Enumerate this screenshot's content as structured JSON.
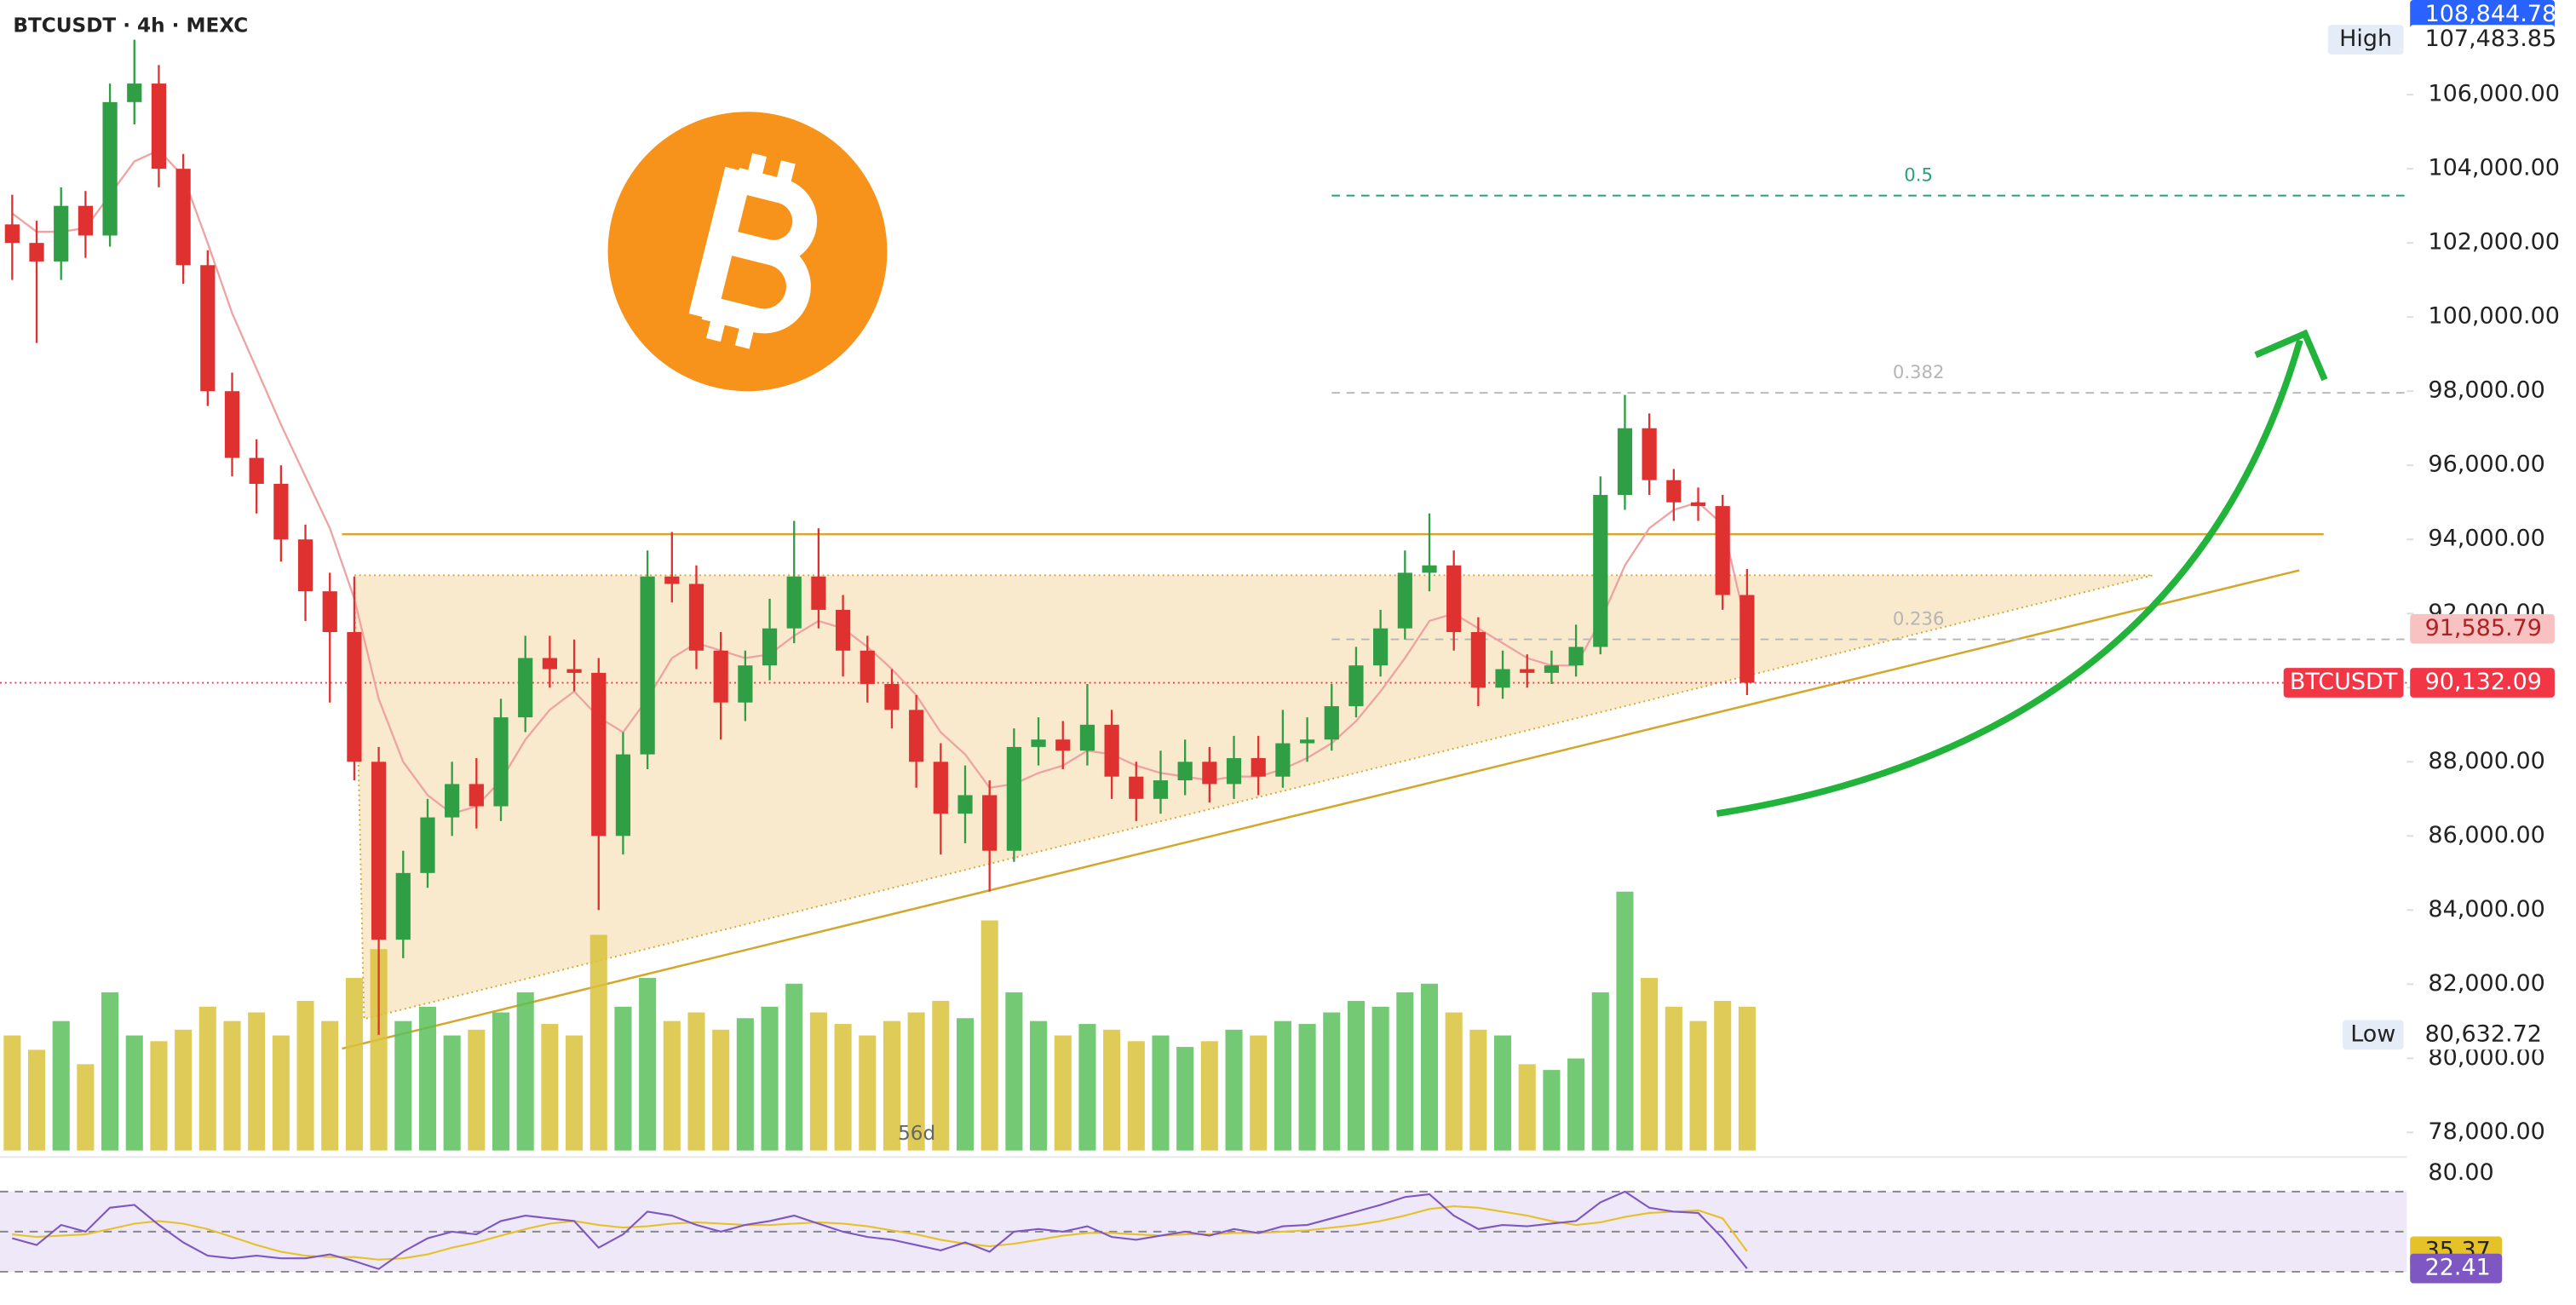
{
  "chart_data": {
    "type": "candlestick",
    "title": "BTCUSDT · 4h · MEXC",
    "annotation": "56d",
    "xlim": [
      -0.5,
      98
    ],
    "ylim": [
      77512.2,
      108554.3
    ],
    "yticks": [
      {
        "value": 78000,
        "label": "78,000.00"
      },
      {
        "value": 80000,
        "label": "80,000.00"
      },
      {
        "value": 82000,
        "label": "82,000.00"
      },
      {
        "value": 84000,
        "label": "84,000.00"
      },
      {
        "value": 86000,
        "label": "86,000.00"
      },
      {
        "value": 88000,
        "label": "88,000.00"
      },
      {
        "value": 90000,
        "label": "90,000.00"
      },
      {
        "value": 92000,
        "label": "92,000.00"
      },
      {
        "value": 94000,
        "label": "94,000.00"
      },
      {
        "value": 96000,
        "label": "96,000.00"
      },
      {
        "value": 98000,
        "label": "98,000.00"
      },
      {
        "value": 100000,
        "label": "100,000.00"
      },
      {
        "value": 102000,
        "label": "102,000.00"
      },
      {
        "value": 104000,
        "label": "104,000.00"
      },
      {
        "value": 106000,
        "label": "106,000.00"
      }
    ],
    "up_color": "#2f9e44",
    "down_color": "#e03131",
    "open": [
      102500,
      102000,
      101500,
      103000,
      102200,
      105800,
      106300,
      104000,
      101400,
      98000,
      96200,
      95500,
      94000,
      92600,
      91500,
      88000,
      83200,
      85000,
      86500,
      87400,
      86800,
      89200,
      90800,
      90500,
      90400,
      86000,
      88200,
      93000,
      92800,
      91000,
      89600,
      90600,
      91600,
      93000,
      92100,
      91000,
      90100,
      89400,
      88000,
      86600,
      87100,
      85600,
      88400,
      88600,
      88300,
      89000,
      87600,
      87000,
      87500,
      88000,
      87400,
      88100,
      87600,
      88500,
      88600,
      89500,
      90600,
      91600,
      93100,
      93300,
      91500,
      90000,
      90500,
      90400,
      90600,
      91100,
      95200,
      97000,
      95600,
      95000,
      94900,
      92500
    ],
    "high": [
      103300,
      102600,
      103500,
      103400,
      106300,
      107483.85,
      106800,
      104400,
      101800,
      98500,
      96700,
      96000,
      94400,
      93100,
      93000,
      88400,
      85600,
      87000,
      88000,
      88100,
      89700,
      91400,
      91400,
      91300,
      90800,
      88800,
      93700,
      94200,
      93300,
      91500,
      91000,
      92400,
      94500,
      94300,
      92500,
      91400,
      90500,
      89800,
      88500,
      87900,
      87500,
      88900,
      89200,
      89100,
      90100,
      89400,
      88000,
      88300,
      88600,
      88400,
      88700,
      88700,
      89400,
      89200,
      90100,
      91100,
      92100,
      93700,
      94700,
      93700,
      91900,
      91000,
      90900,
      91000,
      91700,
      95700,
      97900,
      97400,
      95900,
      95400,
      95200,
      93200
    ],
    "low": [
      101000,
      99300,
      101000,
      101600,
      101900,
      105200,
      103500,
      100900,
      97600,
      95700,
      94700,
      93400,
      91800,
      89600,
      87500,
      80632.72,
      82700,
      84600,
      86000,
      86200,
      86400,
      88800,
      90000,
      89900,
      84000,
      85500,
      87800,
      92300,
      90500,
      88600,
      89100,
      90200,
      91200,
      91600,
      90300,
      89600,
      88900,
      87300,
      85500,
      85800,
      84500,
      85300,
      87900,
      87800,
      87900,
      87000,
      86400,
      86600,
      87100,
      86900,
      87000,
      87100,
      87300,
      88000,
      88300,
      89200,
      90300,
      91300,
      92600,
      91000,
      89500,
      89700,
      90000,
      90100,
      90300,
      90900,
      94800,
      95200,
      94500,
      94500,
      92100,
      89800
    ],
    "close": [
      102000,
      101500,
      103000,
      102200,
      105800,
      106300,
      104000,
      101400,
      98000,
      96200,
      95500,
      94000,
      92600,
      91500,
      88000,
      83200,
      85000,
      86500,
      87400,
      86800,
      89200,
      90800,
      90500,
      90400,
      86000,
      88200,
      93000,
      92800,
      91000,
      89600,
      90600,
      91600,
      93000,
      92100,
      91000,
      90100,
      89400,
      88000,
      86600,
      87100,
      85600,
      88400,
      88600,
      88300,
      89000,
      87600,
      87000,
      87500,
      88000,
      87400,
      88100,
      87600,
      88500,
      88600,
      89500,
      90600,
      91600,
      93100,
      93300,
      91500,
      90000,
      90500,
      90400,
      90600,
      91100,
      95200,
      97000,
      95600,
      95000,
      94900,
      92500,
      90132.09
    ],
    "ma": {
      "color": "#eea3a3",
      "values": [
        102800,
        102300,
        102300,
        102400,
        103300,
        104200,
        104500,
        103800,
        102000,
        100100,
        98600,
        97100,
        95700,
        94300,
        92400,
        89700,
        88000,
        87100,
        86600,
        86800,
        87500,
        88600,
        89400,
        89900,
        89200,
        88800,
        89700,
        90800,
        91200,
        91000,
        90800,
        90900,
        91400,
        91800,
        91600,
        91100,
        90500,
        89800,
        88800,
        88200,
        87300,
        87400,
        87700,
        87900,
        88300,
        88200,
        87900,
        87700,
        87600,
        87500,
        87600,
        87600,
        87800,
        88100,
        88500,
        89100,
        89900,
        90800,
        91800,
        92000,
        91600,
        91200,
        90800,
        90600,
        90600,
        91800,
        93300,
        94300,
        94800,
        95000,
        94400,
        91585.79
      ]
    },
    "volume": {
      "ylim": [
        0,
        100
      ],
      "up_color": "#5cbf5c",
      "down_color": "#d9c23a",
      "values": [
        40,
        35,
        45,
        30,
        55,
        40,
        38,
        42,
        50,
        45,
        48,
        40,
        52,
        45,
        60,
        70,
        45,
        50,
        40,
        42,
        48,
        55,
        44,
        40,
        75,
        50,
        60,
        45,
        48,
        42,
        46,
        50,
        58,
        48,
        44,
        40,
        45,
        48,
        52,
        46,
        80,
        55,
        45,
        40,
        44,
        42,
        38,
        40,
        36,
        38,
        42,
        40,
        45,
        44,
        48,
        52,
        50,
        55,
        58,
        48,
        42,
        40,
        30,
        28,
        32,
        55,
        90,
        60,
        50,
        45,
        52,
        50
      ]
    },
    "fib_xlim": [
      54,
      98
    ],
    "fib_levels": [
      {
        "level": 0.5,
        "price": 103277,
        "color": "#26a17b"
      },
      {
        "level": 0.382,
        "price": 97955,
        "color": "#b5b5b5"
      },
      {
        "level": 0.236,
        "price": 91304,
        "color": "#b5b5b5"
      }
    ],
    "drawings": {
      "color": "#d4a72c",
      "triangle": {
        "x": [
          14,
          87.6,
          14.4
        ],
        "y": [
          93033,
          93033,
          81060
        ],
        "fill": "#f6d9a4"
      },
      "resistance": {
        "x": [
          13.5,
          94.6
        ],
        "y": [
          94142,
          94142
        ]
      },
      "support": {
        "x": [
          13.5,
          93.6
        ],
        "y": [
          80262,
          93166
        ]
      }
    },
    "last_price_color": "#f23645",
    "price_markers": [
      {
        "value": 108844.78,
        "label": "108,844.78",
        "color": "#2962ff",
        "text_color": "#ffffff"
      },
      {
        "tag": "High",
        "value": 107483.85,
        "label": "107,483.85",
        "color": "#e3ecf7",
        "text_color": "#222222"
      },
      {
        "tag": "Low",
        "value": 80632.72,
        "label": "80,632.72",
        "color": "#e3ecf7",
        "text_color": "#222222"
      },
      {
        "value": 91585.79,
        "label": "91,585.79",
        "color": "#f8c2c2",
        "text_color": "#b02020"
      },
      {
        "tag": "BTCUSDT",
        "value": 90132.09,
        "label": "90,132.09",
        "color": "#f23645",
        "text_color": "#ffffff"
      }
    ],
    "rsi": {
      "ylim": [
        0,
        96
      ],
      "yticks": [
        {
          "value": 80,
          "label": "80.00"
        }
      ],
      "levels": [
        80,
        50,
        20
      ],
      "band_color": "#efe8f8",
      "color": "#7e57c2",
      "ma_color": "#e6c229",
      "values": [
        45,
        40,
        55,
        50,
        68,
        70,
        55,
        42,
        32,
        30,
        32,
        30,
        30,
        33,
        28,
        22,
        35,
        45,
        50,
        48,
        58,
        62,
        60,
        58,
        38,
        48,
        65,
        62,
        55,
        50,
        55,
        58,
        62,
        56,
        50,
        46,
        44,
        40,
        36,
        42,
        35,
        50,
        52,
        50,
        54,
        46,
        44,
        47,
        50,
        47,
        52,
        49,
        54,
        55,
        60,
        65,
        70,
        76,
        78,
        62,
        52,
        55,
        54,
        56,
        58,
        72,
        80,
        68,
        65,
        64,
        45,
        22.41
      ],
      "ma_values": [
        48,
        46,
        47,
        48,
        52,
        56,
        58,
        56,
        52,
        46,
        40,
        35,
        32,
        31,
        31,
        29,
        30,
        33,
        38,
        42,
        47,
        52,
        56,
        58,
        55,
        53,
        54,
        56,
        57,
        56,
        55,
        55,
        56,
        57,
        56,
        54,
        51,
        48,
        44,
        41,
        39,
        41,
        44,
        47,
        49,
        49,
        48,
        47,
        48,
        48,
        49,
        49,
        50,
        51,
        53,
        55,
        58,
        62,
        67,
        69,
        68,
        65,
        62,
        58,
        55,
        57,
        61,
        64,
        65,
        66,
        60,
        35.37
      ]
    }
  }
}
